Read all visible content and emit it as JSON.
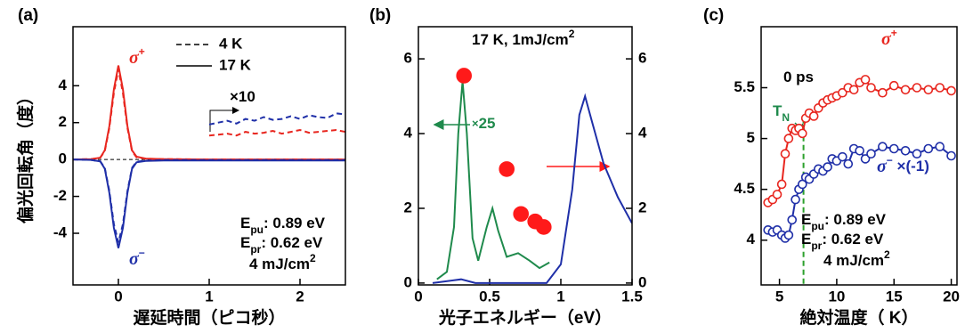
{
  "chart_data": [
    {
      "type": "line",
      "label": "(a)",
      "xlabel": "遅延時間（ピコ秒）",
      "ylabel": "偏光回転角（度）",
      "xlim": [
        -0.5,
        2.5
      ],
      "ylim": [
        -6.8,
        7.2
      ],
      "xticks": [
        0,
        1,
        2
      ],
      "yticks": [
        -4,
        -2,
        0,
        2,
        4
      ],
      "legend": [
        {
          "label": "4 K",
          "dash": true
        },
        {
          "label": "17 K",
          "dash": false
        }
      ],
      "series": [
        {
          "color": "#e8261f",
          "dash": false,
          "x": [
            -0.5,
            -0.3,
            -0.2,
            -0.15,
            -0.1,
            -0.05,
            0,
            0.05,
            0.1,
            0.15,
            0.2,
            0.3,
            0.5,
            1,
            1.5,
            2,
            2.5
          ],
          "values": [
            0,
            0.02,
            0.1,
            0.5,
            1.8,
            3.8,
            5.1,
            3.8,
            1.8,
            0.5,
            0.15,
            0.05,
            0.02,
            0,
            0,
            0,
            0
          ]
        },
        {
          "color": "#e8261f",
          "dash": true,
          "x": [
            -0.5,
            -0.3,
            -0.2,
            -0.15,
            -0.1,
            -0.05,
            0,
            0.05,
            0.1,
            0.15,
            0.2,
            0.3,
            0.5,
            1,
            1.5,
            2,
            2.5
          ],
          "values": [
            0,
            0.02,
            0.1,
            0.45,
            1.7,
            3.6,
            4.9,
            3.6,
            1.7,
            0.45,
            0.12,
            0.04,
            0.02,
            0,
            0,
            0,
            0
          ]
        },
        {
          "color": "#1f2fa8",
          "dash": false,
          "x": [
            -0.5,
            -0.3,
            -0.2,
            -0.15,
            -0.1,
            -0.05,
            0,
            0.05,
            0.1,
            0.15,
            0.2,
            0.3,
            0.5,
            1,
            1.5,
            2,
            2.5
          ],
          "values": [
            0,
            -0.02,
            -0.1,
            -0.5,
            -1.8,
            -3.7,
            -4.8,
            -3.7,
            -1.8,
            -0.5,
            -0.15,
            -0.08,
            -0.05,
            -0.05,
            -0.05,
            -0.05,
            -0.05
          ]
        },
        {
          "color": "#1f2fa8",
          "dash": true,
          "x": [
            -0.5,
            -0.3,
            -0.2,
            -0.15,
            -0.1,
            -0.05,
            0,
            0.05,
            0.1,
            0.15,
            0.2,
            0.3,
            0.5,
            1,
            1.5,
            2,
            2.5
          ],
          "values": [
            0,
            -0.02,
            -0.1,
            -0.45,
            -1.7,
            -3.5,
            -4.5,
            -3.5,
            -1.7,
            -0.45,
            -0.12,
            -0.06,
            -0.03,
            -0.03,
            -0.03,
            -0.03,
            -0.03
          ]
        },
        {
          "color": "#1f2fa8",
          "dash": true,
          "x": [
            1,
            1.1,
            1.2,
            1.3,
            1.4,
            1.5,
            1.6,
            1.7,
            1.8,
            1.9,
            2,
            2.1,
            2.2,
            2.3,
            2.4,
            2.5
          ],
          "values": [
            1.9,
            2,
            2.1,
            1.95,
            2.2,
            2.1,
            2.3,
            2.15,
            2.2,
            2.35,
            2.2,
            2.4,
            2.3,
            2.25,
            2.5,
            2.45
          ]
        },
        {
          "color": "#e8261f",
          "dash": true,
          "x": [
            1,
            1.1,
            1.2,
            1.3,
            1.4,
            1.5,
            1.6,
            1.7,
            1.8,
            1.9,
            2,
            2.1,
            2.2,
            2.3,
            2.4,
            2.5
          ],
          "values": [
            1.3,
            1.35,
            1.4,
            1.3,
            1.5,
            1.4,
            1.45,
            1.55,
            1.4,
            1.5,
            1.6,
            1.45,
            1.5,
            1.55,
            1.6,
            1.5
          ]
        }
      ],
      "annotations": [
        {
          "color": "#e8261f",
          "parts": [
            {
              "text": "σ",
              "italic": true
            },
            {
              "text": "+",
              "sup": true
            }
          ]
        },
        {
          "color": "#1f2fa8",
          "parts": [
            {
              "text": "σ",
              "italic": true
            },
            {
              "text": "−",
              "sup": true
            }
          ]
        },
        {
          "color": "#000000",
          "parts": [
            {
              "text": "×10"
            }
          ]
        },
        {
          "color": "#000000",
          "parts": [
            {
              "text": "E"
            },
            {
              "text": "pu",
              "sub": true
            },
            {
              "text": ": 0.89 eV"
            }
          ]
        },
        {
          "color": "#000000",
          "parts": [
            {
              "text": "E"
            },
            {
              "text": "pr",
              "sub": true
            },
            {
              "text": ": 0.62 eV"
            }
          ]
        },
        {
          "color": "#000000",
          "parts": [
            {
              "text": "4 mJ/cm"
            },
            {
              "text": "2",
              "sup": true
            }
          ]
        }
      ]
    },
    {
      "type": "line",
      "label": "(b)",
      "xlabel": "光子エネルギー（eV）",
      "xlim": [
        0,
        1.5
      ],
      "ylim": [
        -0.05,
        6.86
      ],
      "y2lim": [
        -0.05,
        6.86
      ],
      "xticks": [
        0,
        0.5,
        1,
        1.5
      ],
      "yticks": [
        0,
        2,
        4,
        6
      ],
      "y2ticks": [
        0,
        2,
        4,
        6
      ],
      "series": [
        {
          "color": "#1f8a4c",
          "dash": false,
          "x": [
            0.13,
            0.2,
            0.25,
            0.28,
            0.31,
            0.34,
            0.38,
            0.42,
            0.48,
            0.52,
            0.56,
            0.62,
            0.7,
            0.78,
            0.85,
            0.92
          ],
          "values": [
            0.1,
            0.3,
            1.5,
            4,
            5.4,
            4,
            1.2,
            0.6,
            1.5,
            2,
            1.4,
            0.7,
            0.8,
            0.6,
            0.4,
            0.55
          ]
        },
        {
          "color": "#1f2fa8",
          "dash": false,
          "x": [
            0.1,
            0.3,
            0.4,
            0.9,
            1,
            1.08,
            1.13,
            1.17,
            1.22,
            1.3,
            1.4,
            1.5
          ],
          "values": [
            0,
            0.1,
            0,
            0,
            0.5,
            2.5,
            4.5,
            5,
            4.3,
            3.2,
            2.3,
            1.6
          ]
        },
        {
          "color": "#ff1a1a",
          "mode": "markers",
          "filled": true,
          "axis": "y2",
          "x": [
            0.32,
            0.62,
            0.72,
            0.82,
            0.88
          ],
          "values": [
            5.55,
            3.05,
            1.85,
            1.65,
            1.5
          ]
        }
      ],
      "annotations": [
        {
          "color": "#000000",
          "parts": [
            {
              "text": "17 K, 1mJ/cm"
            },
            {
              "text": "2",
              "sup": true
            }
          ]
        },
        {
          "color": "#1f8a4c",
          "parts": [
            {
              "text": "×",
              "small": true
            },
            {
              "text": "25"
            }
          ]
        }
      ]
    },
    {
      "type": "line",
      "label": "(c)",
      "xlabel": "絶対温度（ K）",
      "xlim": [
        3.4,
        20.5
      ],
      "ylim": [
        3.56,
        6.1
      ],
      "xticks": [
        5,
        10,
        15,
        20
      ],
      "yticks": [
        4,
        4.5,
        5,
        5.5
      ],
      "vline": {
        "x": 7.1,
        "color": "#2ca02c"
      },
      "series": [
        {
          "color": "#e8261f",
          "mode": "lines+markers",
          "filled": false,
          "x": [
            4,
            4.4,
            4.8,
            5.2,
            5.5,
            5.8,
            6.1,
            6.4,
            6.7,
            7,
            7.3,
            7.6,
            8,
            8.4,
            8.8,
            9.2,
            9.6,
            10,
            10.5,
            11,
            11.5,
            12,
            12.5,
            13,
            14,
            15,
            16,
            17,
            18,
            19,
            20
          ],
          "values": [
            4.37,
            4.4,
            4.45,
            4.55,
            4.85,
            5.0,
            5.1,
            5.08,
            5.1,
            5.05,
            5.2,
            5.25,
            5.22,
            5.3,
            5.35,
            5.38,
            5.4,
            5.42,
            5.45,
            5.5,
            5.48,
            5.55,
            5.58,
            5.5,
            5.45,
            5.52,
            5.48,
            5.5,
            5.48,
            5.5,
            5.47
          ]
        },
        {
          "color": "#1f2fa8",
          "mode": "lines+markers",
          "filled": false,
          "x": [
            4,
            4.4,
            4.8,
            5.2,
            5.5,
            5.8,
            6.1,
            6.4,
            6.7,
            7,
            7.3,
            7.6,
            8,
            8.4,
            8.8,
            9.2,
            9.6,
            10,
            10.5,
            11,
            11.5,
            12,
            12.5,
            13,
            14,
            15,
            16,
            17,
            18,
            19,
            20
          ],
          "values": [
            4.1,
            4.08,
            4.1,
            4.05,
            4.02,
            4.05,
            4.2,
            4.4,
            4.5,
            4.55,
            4.62,
            4.6,
            4.65,
            4.7,
            4.68,
            4.72,
            4.8,
            4.78,
            4.82,
            4.75,
            4.9,
            4.88,
            4.8,
            4.85,
            4.92,
            4.9,
            4.88,
            4.85,
            4.9,
            4.92,
            4.83
          ]
        }
      ],
      "annotations": [
        {
          "color": "#000000",
          "parts": [
            {
              "text": "0 ps"
            }
          ]
        },
        {
          "color": "#e8261f",
          "parts": [
            {
              "text": "σ",
              "italic": true
            },
            {
              "text": "+",
              "sup": true
            }
          ]
        },
        {
          "color": "#1f8a4c",
          "parts": [
            {
              "text": "T"
            },
            {
              "text": "N",
              "sub": true
            }
          ]
        },
        {
          "color": "#1f2fa8",
          "parts": [
            {
              "text": "σ",
              "italic": true
            },
            {
              "text": "−",
              "sup": true
            },
            {
              "text": " ×(-1)"
            }
          ]
        },
        {
          "color": "#000000",
          "parts": [
            {
              "text": "E"
            },
            {
              "text": "pu",
              "sub": true
            },
            {
              "text": ": 0.89 eV"
            }
          ]
        },
        {
          "color": "#000000",
          "parts": [
            {
              "text": "E"
            },
            {
              "text": "pr",
              "sub": true
            },
            {
              "text": ": 0.62 eV"
            }
          ]
        },
        {
          "color": "#000000",
          "parts": [
            {
              "text": "4 mJ/cm"
            },
            {
              "text": "2",
              "sup": true
            }
          ]
        }
      ]
    }
  ]
}
